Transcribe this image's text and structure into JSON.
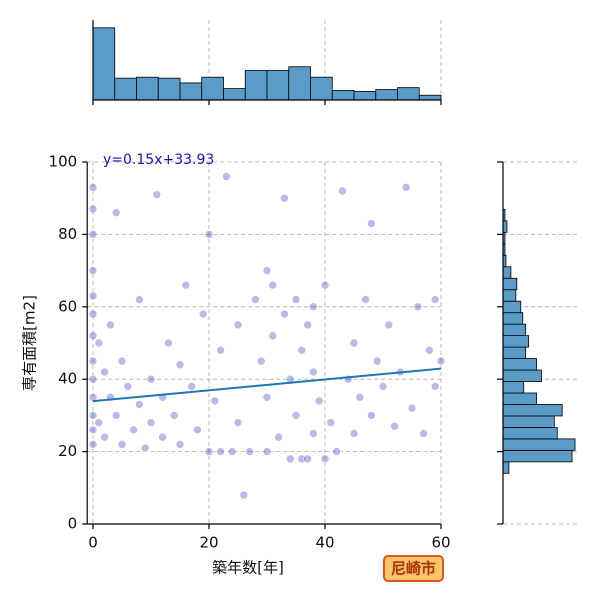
{
  "chart_data": {
    "type": "scatter",
    "xlabel": "築年数[年]",
    "ylabel": "専有面積[m2]",
    "badge": "尼崎市",
    "color": "#3a3ac0",
    "grid": true,
    "xlim": [
      -1,
      60
    ],
    "ylim": [
      0,
      100
    ],
    "xticks": [
      0,
      20,
      40,
      60
    ],
    "yticks": [
      0,
      20,
      40,
      60,
      80,
      100
    ],
    "x": [
      0,
      0,
      0,
      0,
      0,
      0,
      0,
      0,
      0,
      0,
      0,
      0,
      0,
      1,
      1,
      2,
      2,
      3,
      3,
      4,
      4,
      5,
      5,
      6,
      7,
      8,
      8,
      9,
      10,
      10,
      11,
      12,
      12,
      13,
      14,
      15,
      15,
      16,
      17,
      18,
      19,
      20,
      20,
      21,
      22,
      22,
      23,
      24,
      25,
      25,
      26,
      27,
      28,
      29,
      30,
      30,
      30,
      31,
      31,
      32,
      33,
      33,
      34,
      34,
      35,
      35,
      36,
      36,
      37,
      37,
      38,
      38,
      38,
      39,
      40,
      40,
      41,
      42,
      43,
      44,
      45,
      45,
      46,
      47,
      48,
      48,
      49,
      50,
      51,
      52,
      53,
      54,
      55,
      56,
      57,
      58,
      59,
      60,
      59
    ],
    "y": [
      93,
      87,
      80,
      70,
      63,
      58,
      52,
      45,
      40,
      35,
      30,
      26,
      22,
      50,
      28,
      42,
      24,
      35,
      55,
      30,
      86,
      22,
      45,
      38,
      26,
      33,
      62,
      21,
      40,
      28,
      91,
      35,
      24,
      50,
      30,
      22,
      44,
      66,
      38,
      26,
      58,
      20,
      80,
      34,
      20,
      48,
      96,
      20,
      28,
      55,
      8,
      20,
      62,
      45,
      20,
      70,
      35,
      52,
      66,
      24,
      90,
      58,
      18,
      40,
      30,
      62,
      18,
      48,
      55,
      18,
      42,
      60,
      25,
      34,
      18,
      66,
      28,
      20,
      92,
      40,
      50,
      25,
      35,
      62,
      83,
      30,
      45,
      38,
      55,
      27,
      42,
      93,
      32,
      60,
      25,
      48,
      38,
      45,
      62
    ],
    "regression": {
      "slope": 0.15,
      "intercept": 33.93,
      "label": "y=0.15x+33.93",
      "color": "#1f77b4"
    },
    "top_hist": {
      "color": "#5a9bc8",
      "bins": [
        0,
        3.75,
        7.5,
        11.25,
        15,
        18.75,
        22.5,
        26.25,
        30,
        33.75,
        37.5,
        41.25,
        45,
        48.75,
        52.5,
        56.25,
        60
      ],
      "counts": [
        76,
        23,
        24,
        23,
        18,
        24,
        12,
        31,
        31,
        35,
        24,
        10,
        9,
        11,
        13,
        5
      ],
      "ylim": [
        0,
        80
      ]
    },
    "right_hist": {
      "color": "#5a9bc8",
      "bins": [
        14,
        17.17,
        20.34,
        23.51,
        26.68,
        29.85,
        33.02,
        36.19,
        39.36,
        42.53,
        45.7,
        48.87,
        52.04,
        55.21,
        58.38,
        61.55,
        64.72,
        67.89,
        71.06,
        74.23,
        77.4,
        80.57,
        83.74,
        86.91
      ],
      "counts": [
        6,
        70,
        73,
        55,
        52,
        60,
        34,
        21,
        39,
        34,
        23,
        26,
        23,
        20,
        18,
        13,
        14,
        8,
        3,
        2,
        2,
        4,
        2
      ],
      "xlim": [
        0,
        75
      ]
    }
  }
}
